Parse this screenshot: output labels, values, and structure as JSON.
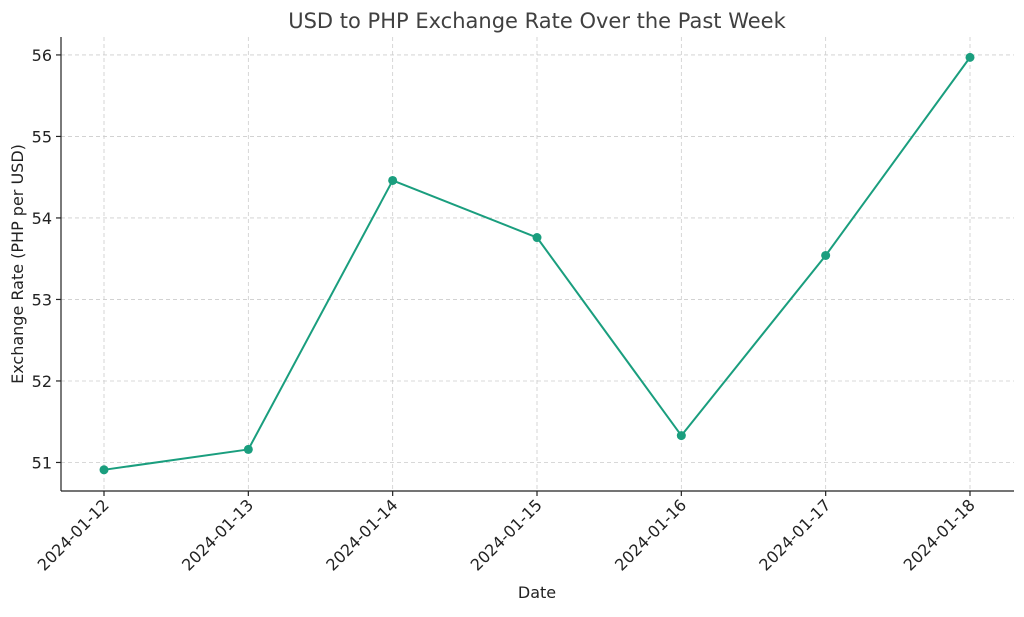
{
  "chart_data": {
    "type": "line",
    "title": "USD to PHP Exchange Rate Over the Past Week",
    "xlabel": "Date",
    "ylabel": "Exchange Rate (PHP per USD)",
    "categories": [
      "2024-01-12",
      "2024-01-13",
      "2024-01-14",
      "2024-01-15",
      "2024-01-16",
      "2024-01-17",
      "2024-01-18"
    ],
    "series": [
      {
        "values": [
          50.91,
          51.16,
          54.46,
          53.76,
          51.33,
          53.54,
          55.97
        ],
        "color": "#1a9e7e",
        "marker": "circle"
      }
    ],
    "yticks": [
      51,
      52,
      53,
      54,
      55,
      56
    ],
    "ylim": [
      50.65,
      56.22
    ],
    "grid": true,
    "legend": "none"
  }
}
